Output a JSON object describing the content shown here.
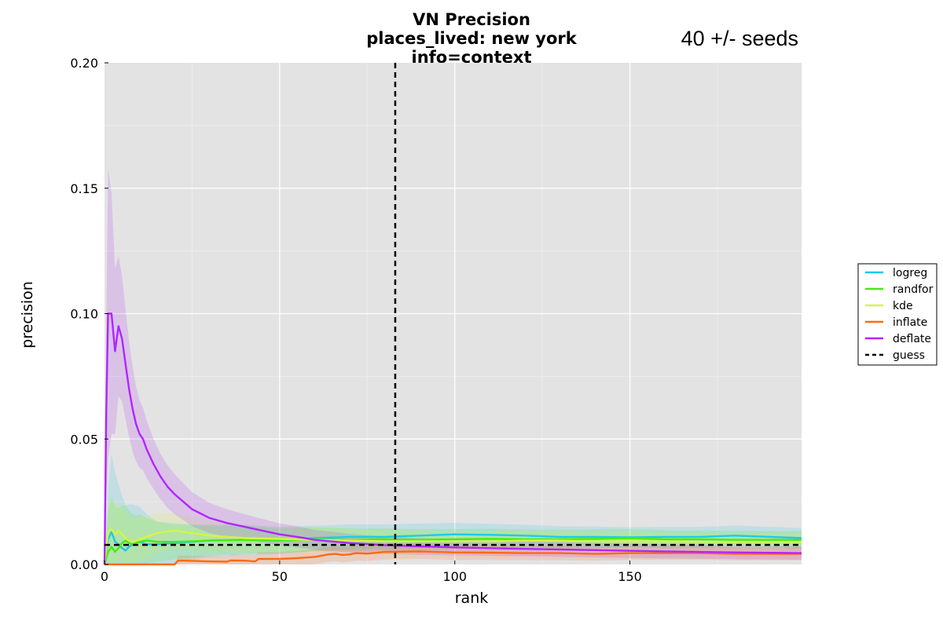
{
  "chart_data": {
    "type": "line",
    "title": [
      "VN Precision",
      "places_lived: new york",
      "info=context"
    ],
    "annotation": "40 +/- seeds",
    "xlabel": "rank",
    "ylabel": "precision",
    "xlim": [
      0,
      199
    ],
    "ylim": [
      0,
      0.2
    ],
    "xticks": [
      0,
      50,
      100,
      150
    ],
    "xtick_labels": [
      "0",
      "50",
      "100",
      "150"
    ],
    "yticks": [
      0,
      0.05,
      0.1,
      0.15,
      0.2
    ],
    "ytick_labels": [
      "0.00",
      "0.05",
      "0.10",
      "0.15",
      "0.20"
    ],
    "grid": true,
    "background": "#e3e3e3",
    "legend_placement": "right, outside plot",
    "vline_x": 83,
    "guess_y": 0.0078,
    "series": [
      {
        "name": "logreg",
        "color": "#1ec8f0",
        "x": [
          0,
          1,
          2,
          3,
          4,
          5,
          6,
          7,
          8,
          9,
          10,
          12,
          15,
          20,
          25,
          30,
          40,
          50,
          60,
          70,
          80,
          90,
          100,
          110,
          120,
          130,
          140,
          150,
          160,
          170,
          180,
          190,
          199
        ],
        "y": [
          0,
          0.01,
          0.013,
          0.009,
          0.008,
          0.0065,
          0.0055,
          0.007,
          0.008,
          0.0085,
          0.009,
          0.008,
          0.008,
          0.0085,
          0.009,
          0.0095,
          0.0098,
          0.0095,
          0.0105,
          0.011,
          0.011,
          0.0115,
          0.012,
          0.0118,
          0.0115,
          0.011,
          0.011,
          0.0108,
          0.011,
          0.011,
          0.0115,
          0.011,
          0.0105
        ],
        "band": [
          0,
          0.02,
          0.031,
          0.028,
          0.024,
          0.021,
          0.018,
          0.017,
          0.016,
          0.015,
          0.014,
          0.012,
          0.009,
          0.008,
          0.007,
          0.0065,
          0.006,
          0.0055,
          0.005,
          0.005,
          0.005,
          0.0048,
          0.0046,
          0.0044,
          0.0043,
          0.0042,
          0.0041,
          0.004,
          0.004,
          0.004,
          0.004,
          0.004,
          0.004
        ]
      },
      {
        "name": "randfor",
        "color": "#44ee10",
        "x": [
          0,
          1,
          2,
          3,
          4,
          5,
          6,
          7,
          8,
          9,
          10,
          12,
          15,
          20,
          25,
          30,
          40,
          50,
          60,
          70,
          80,
          90,
          100,
          110,
          120,
          130,
          140,
          150,
          160,
          170,
          180,
          190,
          199
        ],
        "y": [
          0,
          0.005,
          0.007,
          0.005,
          0.0065,
          0.0085,
          0.0095,
          0.0085,
          0.008,
          0.0085,
          0.009,
          0.0095,
          0.009,
          0.009,
          0.0092,
          0.0095,
          0.0098,
          0.0095,
          0.01,
          0.0098,
          0.01,
          0.0098,
          0.01,
          0.0102,
          0.01,
          0.01,
          0.0102,
          0.0105,
          0.01,
          0.01,
          0.0098,
          0.0098,
          0.0098
        ],
        "band": [
          0,
          0.015,
          0.02,
          0.018,
          0.016,
          0.015,
          0.014,
          0.013,
          0.012,
          0.011,
          0.011,
          0.009,
          0.008,
          0.007,
          0.0065,
          0.006,
          0.0055,
          0.005,
          0.0048,
          0.0045,
          0.0043,
          0.0042,
          0.0041,
          0.004,
          0.0039,
          0.0038,
          0.0037,
          0.0036,
          0.0036,
          0.0035,
          0.0035,
          0.0035,
          0.0035
        ]
      },
      {
        "name": "kde",
        "color": "#d6f542",
        "x": [
          0,
          1,
          2,
          3,
          4,
          5,
          6,
          7,
          8,
          9,
          10,
          12,
          15,
          20,
          25,
          30,
          40,
          50,
          60,
          70,
          80,
          90,
          100,
          110,
          120,
          130,
          140,
          150,
          160,
          170,
          180,
          190,
          199
        ],
        "y": [
          0,
          0.013,
          0.014,
          0.012,
          0.0135,
          0.012,
          0.0105,
          0.0095,
          0.009,
          0.0095,
          0.01,
          0.011,
          0.0125,
          0.0135,
          0.0125,
          0.0115,
          0.0105,
          0.0102,
          0.0098,
          0.0095,
          0.0092,
          0.0092,
          0.0092,
          0.0092,
          0.0095,
          0.0095,
          0.0092,
          0.0092,
          0.0092,
          0.009,
          0.009,
          0.009,
          0.009
        ],
        "band": [
          0,
          0.012,
          0.013,
          0.012,
          0.011,
          0.011,
          0.01,
          0.01,
          0.0095,
          0.009,
          0.009,
          0.0085,
          0.008,
          0.007,
          0.0065,
          0.006,
          0.0055,
          0.005,
          0.0048,
          0.0046,
          0.0044,
          0.0042,
          0.004,
          0.0039,
          0.0038,
          0.0037,
          0.0036,
          0.0036,
          0.0035,
          0.0035,
          0.0035,
          0.0035,
          0.0035
        ]
      },
      {
        "name": "inflate",
        "color": "#ff6a10",
        "x": [
          0,
          5,
          10,
          15,
          20,
          21,
          22,
          25,
          30,
          35,
          36,
          40,
          43,
          44,
          50,
          55,
          60,
          62,
          64,
          66,
          68,
          70,
          72,
          75,
          80,
          90,
          100,
          110,
          120,
          130,
          140,
          150,
          160,
          170,
          180,
          190,
          199
        ],
        "y": [
          0,
          0,
          0,
          0,
          0,
          0.0015,
          0.0015,
          0.0014,
          0.0012,
          0.0011,
          0.0016,
          0.0015,
          0.0012,
          0.0022,
          0.0022,
          0.0025,
          0.003,
          0.0035,
          0.004,
          0.0042,
          0.0038,
          0.004,
          0.0045,
          0.0043,
          0.005,
          0.0052,
          0.0048,
          0.0047,
          0.0045,
          0.0045,
          0.0042,
          0.0045,
          0.0045,
          0.0045,
          0.0042,
          0.0042,
          0.0042
        ],
        "band": [
          0,
          0,
          0,
          0,
          0,
          0.002,
          0.002,
          0.0021,
          0.0022,
          0.0023,
          0.0024,
          0.0025,
          0.0026,
          0.0027,
          0.0028,
          0.0029,
          0.003,
          0.003,
          0.003,
          0.003,
          0.003,
          0.003,
          0.003,
          0.003,
          0.003,
          0.003,
          0.003,
          0.0029,
          0.0028,
          0.0028,
          0.0027,
          0.0027,
          0.0026,
          0.0026,
          0.0026,
          0.0025,
          0.0025
        ]
      },
      {
        "name": "deflate",
        "color": "#b026ff",
        "x": [
          0,
          0.5,
          1,
          2,
          3,
          4,
          5,
          6,
          7,
          8,
          9,
          10,
          11,
          12,
          14,
          16,
          18,
          20,
          25,
          30,
          35,
          40,
          45,
          50,
          55,
          60,
          70,
          80,
          90,
          100,
          120,
          140,
          160,
          180,
          199
        ],
        "y": [
          0,
          0.06,
          0.1,
          0.1,
          0.085,
          0.095,
          0.09,
          0.08,
          0.07,
          0.062,
          0.056,
          0.052,
          0.05,
          0.046,
          0.04,
          0.035,
          0.031,
          0.028,
          0.022,
          0.0185,
          0.0165,
          0.015,
          0.0135,
          0.012,
          0.011,
          0.0098,
          0.0085,
          0.0077,
          0.0072,
          0.0068,
          0.0062,
          0.0057,
          0.0052,
          0.0048,
          0.0045
        ],
        "band": [
          0,
          0.035,
          0.058,
          0.048,
          0.033,
          0.028,
          0.025,
          0.022,
          0.019,
          0.017,
          0.015,
          0.0135,
          0.0125,
          0.0115,
          0.01,
          0.009,
          0.0085,
          0.008,
          0.0068,
          0.006,
          0.0055,
          0.005,
          0.0047,
          0.0044,
          0.0042,
          0.004,
          0.0037,
          0.0035,
          0.0033,
          0.0032,
          0.003,
          0.0029,
          0.0028,
          0.0027,
          0.0027
        ]
      }
    ],
    "guess_series": {
      "name": "guess",
      "color": "#000000"
    }
  }
}
